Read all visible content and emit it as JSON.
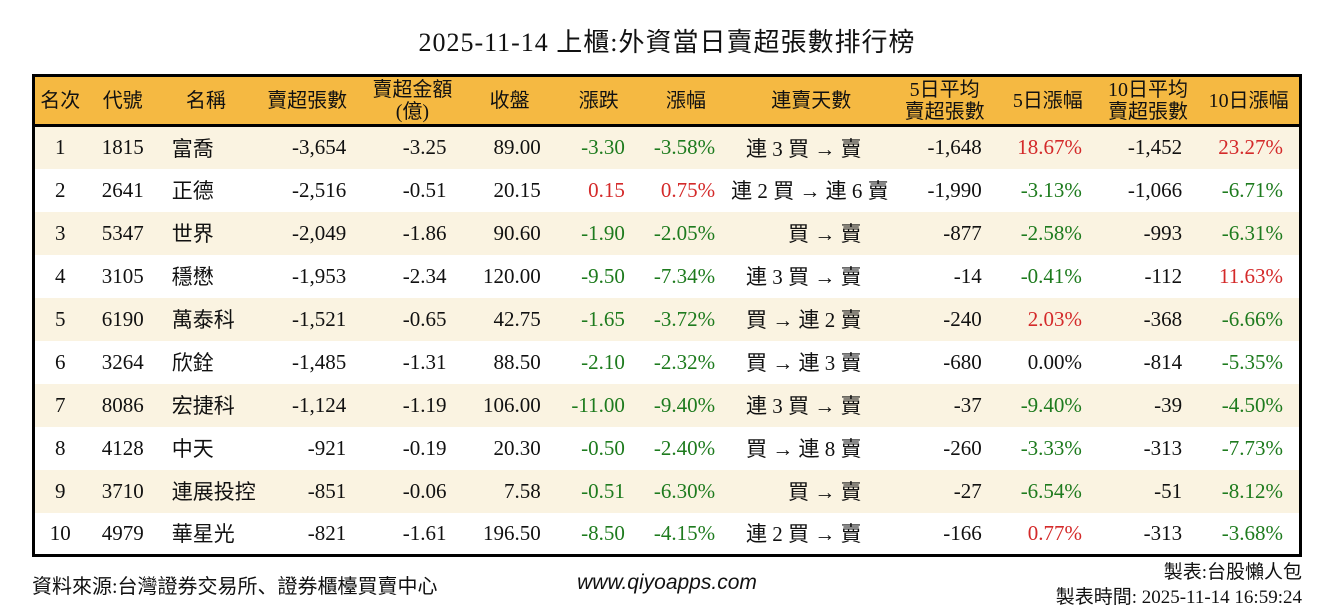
{
  "title": "2025-11-14 上櫃:外資當日賣超張數排行榜",
  "colors": {
    "green_down": "#1e7b1e",
    "red_up": "#d42a2a",
    "header_background": "#f5b942",
    "alternate_row_background": "#faf3e1",
    "border": "#000000",
    "text": "#111111"
  },
  "chart_data": {
    "type": "table",
    "columns": [
      "名次",
      "代號",
      "名稱",
      "賣超張數",
      "賣超金額\n(億)",
      "收盤",
      "漲跌",
      "漲幅",
      "連賣天數",
      "5日平均\n賣超張數",
      "5日漲幅",
      "10日平均\n賣超張數",
      "10日漲幅"
    ],
    "rows": [
      [
        {
          "text": "1"
        },
        {
          "text": "1815"
        },
        {
          "text": "富喬"
        },
        {
          "text": "-3,654"
        },
        {
          "text": "-3.25"
        },
        {
          "text": "89.00"
        },
        {
          "text": "-3.30",
          "color": "g"
        },
        {
          "text": "-3.58%",
          "color": "g"
        },
        {
          "text": "連 3 買 → 賣"
        },
        {
          "text": "-1,648"
        },
        {
          "text": "18.67%",
          "color": "r"
        },
        {
          "text": "-1,452"
        },
        {
          "text": "23.27%",
          "color": "r"
        }
      ],
      [
        {
          "text": "2"
        },
        {
          "text": "2641"
        },
        {
          "text": "正德"
        },
        {
          "text": "-2,516"
        },
        {
          "text": "-0.51"
        },
        {
          "text": "20.15"
        },
        {
          "text": "0.15",
          "color": "r"
        },
        {
          "text": "0.75%",
          "color": "r"
        },
        {
          "text": "連 2 買 → 連 6 賣"
        },
        {
          "text": "-1,990"
        },
        {
          "text": "-3.13%",
          "color": "g"
        },
        {
          "text": "-1,066"
        },
        {
          "text": "-6.71%",
          "color": "g"
        }
      ],
      [
        {
          "text": "3"
        },
        {
          "text": "5347"
        },
        {
          "text": "世界"
        },
        {
          "text": "-2,049"
        },
        {
          "text": "-1.86"
        },
        {
          "text": "90.60"
        },
        {
          "text": "-1.90",
          "color": "g"
        },
        {
          "text": "-2.05%",
          "color": "g"
        },
        {
          "text": "買 → 賣"
        },
        {
          "text": "-877"
        },
        {
          "text": "-2.58%",
          "color": "g"
        },
        {
          "text": "-993"
        },
        {
          "text": "-6.31%",
          "color": "g"
        }
      ],
      [
        {
          "text": "4"
        },
        {
          "text": "3105"
        },
        {
          "text": "穩懋"
        },
        {
          "text": "-1,953"
        },
        {
          "text": "-2.34"
        },
        {
          "text": "120.00"
        },
        {
          "text": "-9.50",
          "color": "g"
        },
        {
          "text": "-7.34%",
          "color": "g"
        },
        {
          "text": "連 3 買 → 賣"
        },
        {
          "text": "-14"
        },
        {
          "text": "-0.41%",
          "color": "g"
        },
        {
          "text": "-112"
        },
        {
          "text": "11.63%",
          "color": "r"
        }
      ],
      [
        {
          "text": "5"
        },
        {
          "text": "6190"
        },
        {
          "text": "萬泰科"
        },
        {
          "text": "-1,521"
        },
        {
          "text": "-0.65"
        },
        {
          "text": "42.75"
        },
        {
          "text": "-1.65",
          "color": "g"
        },
        {
          "text": "-3.72%",
          "color": "g"
        },
        {
          "text": "買 → 連 2 賣"
        },
        {
          "text": "-240"
        },
        {
          "text": "2.03%",
          "color": "r"
        },
        {
          "text": "-368"
        },
        {
          "text": "-6.66%",
          "color": "g"
        }
      ],
      [
        {
          "text": "6"
        },
        {
          "text": "3264"
        },
        {
          "text": "欣銓"
        },
        {
          "text": "-1,485"
        },
        {
          "text": "-1.31"
        },
        {
          "text": "88.50"
        },
        {
          "text": "-2.10",
          "color": "g"
        },
        {
          "text": "-2.32%",
          "color": "g"
        },
        {
          "text": "買 → 連 3 賣"
        },
        {
          "text": "-680"
        },
        {
          "text": "0.00%"
        },
        {
          "text": "-814"
        },
        {
          "text": "-5.35%",
          "color": "g"
        }
      ],
      [
        {
          "text": "7"
        },
        {
          "text": "8086"
        },
        {
          "text": "宏捷科"
        },
        {
          "text": "-1,124"
        },
        {
          "text": "-1.19"
        },
        {
          "text": "106.00"
        },
        {
          "text": "-11.00",
          "color": "g"
        },
        {
          "text": "-9.40%",
          "color": "g"
        },
        {
          "text": "連 3 買 → 賣"
        },
        {
          "text": "-37"
        },
        {
          "text": "-9.40%",
          "color": "g"
        },
        {
          "text": "-39"
        },
        {
          "text": "-4.50%",
          "color": "g"
        }
      ],
      [
        {
          "text": "8"
        },
        {
          "text": "4128"
        },
        {
          "text": "中天"
        },
        {
          "text": "-921"
        },
        {
          "text": "-0.19"
        },
        {
          "text": "20.30"
        },
        {
          "text": "-0.50",
          "color": "g"
        },
        {
          "text": "-2.40%",
          "color": "g"
        },
        {
          "text": "買 → 連 8 賣"
        },
        {
          "text": "-260"
        },
        {
          "text": "-3.33%",
          "color": "g"
        },
        {
          "text": "-313"
        },
        {
          "text": "-7.73%",
          "color": "g"
        }
      ],
      [
        {
          "text": "9"
        },
        {
          "text": "3710"
        },
        {
          "text": "連展投控"
        },
        {
          "text": "-851"
        },
        {
          "text": "-0.06"
        },
        {
          "text": "7.58"
        },
        {
          "text": "-0.51",
          "color": "g"
        },
        {
          "text": "-6.30%",
          "color": "g"
        },
        {
          "text": "買 → 賣"
        },
        {
          "text": "-27"
        },
        {
          "text": "-6.54%",
          "color": "g"
        },
        {
          "text": "-51"
        },
        {
          "text": "-8.12%",
          "color": "g"
        }
      ],
      [
        {
          "text": "10"
        },
        {
          "text": "4979"
        },
        {
          "text": "華星光"
        },
        {
          "text": "-821"
        },
        {
          "text": "-1.61"
        },
        {
          "text": "196.50"
        },
        {
          "text": "-8.50",
          "color": "g"
        },
        {
          "text": "-4.15%",
          "color": "g"
        },
        {
          "text": "連 2 買 → 賣"
        },
        {
          "text": "-166"
        },
        {
          "text": "0.77%",
          "color": "r"
        },
        {
          "text": "-313"
        },
        {
          "text": "-3.68%",
          "color": "g"
        }
      ]
    ]
  },
  "footer": {
    "source": "資料來源:台灣證券交易所、證券櫃檯買賣中心",
    "website": "www.qiyoapps.com",
    "maker": "製表:台股懶人包",
    "made_time": "製表時間: 2025-11-14 16:59:24"
  }
}
